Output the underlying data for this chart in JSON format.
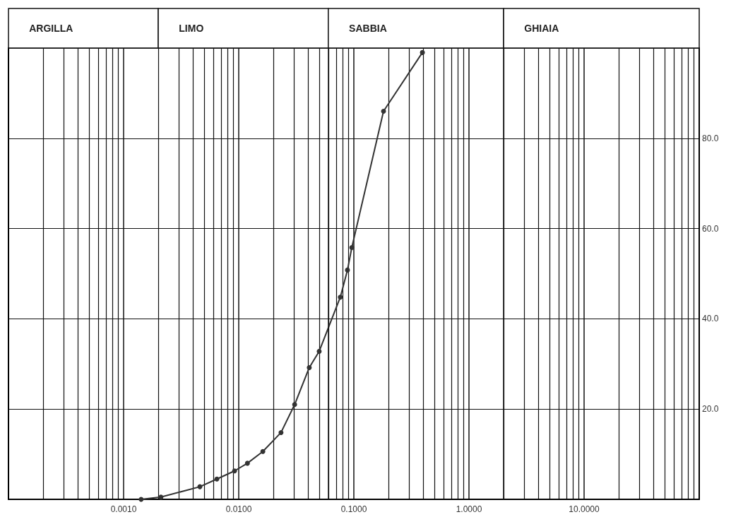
{
  "chart_data": {
    "type": "line",
    "x": [
      0.00142,
      0.00211,
      0.0046,
      0.00646,
      0.0092,
      0.0119,
      0.0162,
      0.0233,
      0.0306,
      0.041,
      0.05,
      0.0763,
      0.088,
      0.096,
      0.181,
      0.394
    ],
    "series": [
      {
        "color": "#333333",
        "values": [
          0,
          0.5,
          2.8,
          4.5,
          6.3,
          8,
          10.6,
          14.8,
          21,
          29.2,
          32.8,
          44.8,
          50.8,
          55.8,
          86,
          99
        ]
      }
    ],
    "log": "x",
    "xlim": [
      0.0001,
      100
    ],
    "xticks": [
      {
        "value": 0.001,
        "label": "0.0010"
      },
      {
        "value": 0.01,
        "label": "0.0100"
      },
      {
        "value": 0.1,
        "label": "0.1000"
      },
      {
        "value": 1,
        "label": "1.0000"
      },
      {
        "value": 10,
        "label": "10.0000"
      }
    ],
    "ylim": [
      0,
      100
    ],
    "yticks": [
      {
        "value": 20,
        "label": "20.0"
      },
      {
        "value": 40,
        "label": "40.0"
      },
      {
        "value": 60,
        "label": "60.0"
      },
      {
        "value": 80,
        "label": "80.0"
      }
    ],
    "annotations": [
      "ARGILLA",
      "LIMO",
      "SABBIA",
      "GHIAIA"
    ],
    "ref_lines": [
      {
        "axis": "x",
        "value": 0.002,
        "color": "#111111"
      },
      {
        "axis": "x",
        "value": 0.06,
        "color": "#111111"
      },
      {
        "axis": "x",
        "value": 2,
        "color": "#111111"
      }
    ],
    "grid": true,
    "marker": "circle",
    "line_style": "solid"
  }
}
